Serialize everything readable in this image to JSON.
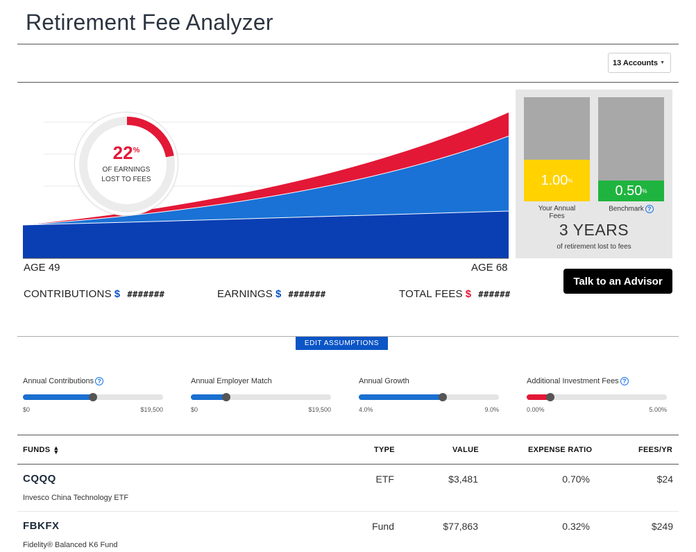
{
  "app_title": "Retirement Fee Analyzer",
  "accounts_select": {
    "label": "13 Accounts"
  },
  "chart": {
    "donut": {
      "percent": 22,
      "percent_text": "22",
      "percent_sign": "%",
      "label_line1": "OF EARNINGS",
      "label_line2": "LOST TO FEES"
    },
    "age_start": "AGE 49",
    "age_end": "AGE 68",
    "colors": {
      "contributions": "#0a3fb4",
      "earnings": "#1a72d6",
      "fees": "#e31837"
    }
  },
  "summary": {
    "contributions": {
      "label": "CONTRIBUTIONS",
      "currency": "$",
      "value": "#######"
    },
    "earnings": {
      "label": "EARNINGS",
      "currency": "$",
      "value": "#######"
    },
    "total_fees": {
      "label": "TOTAL FEES",
      "currency": "$",
      "value": "######"
    }
  },
  "fee_compare": {
    "yours": {
      "value": "1.00",
      "sign": "%",
      "caption": "Your Annual Fees",
      "level": 0.4,
      "color": "#ffd200"
    },
    "benchmark": {
      "value": "0.50",
      "sign": "%",
      "caption": "Benchmark",
      "level": 0.2,
      "color": "#1fb43f"
    },
    "years": "3 YEARS",
    "years_sub": "of retirement lost to fees"
  },
  "advisor_button": "Talk to an Advisor",
  "edit_button": "EDIT ASSUMPTIONS",
  "sliders": [
    {
      "label": "Annual Contributions",
      "help": true,
      "min": "$0",
      "max": "$19,500",
      "level": 0.5,
      "color": "#1a6fd0"
    },
    {
      "label": "Annual Employer Match",
      "help": false,
      "min": "$0",
      "max": "$19,500",
      "level": 0.25,
      "color": "#1a6fd0"
    },
    {
      "label": "Annual Growth",
      "help": false,
      "min": "4.0%",
      "max": "9.0%",
      "level": 0.6,
      "color": "#1a6fd0"
    },
    {
      "label": "Additional Investment Fees",
      "help": true,
      "min": "0.00%",
      "max": "5.00%",
      "level": 0.17,
      "color": "#e31837"
    }
  ],
  "funds_table": {
    "headers": {
      "funds": "FUNDS",
      "type": "TYPE",
      "value": "VALUE",
      "expense_ratio": "EXPENSE RATIO",
      "fees_yr": "FEES/YR"
    },
    "rows": [
      {
        "symbol": "CQQQ",
        "name": "Invesco China Technology ETF",
        "type": "ETF",
        "value": "$3,481",
        "expense_ratio": "0.70%",
        "fees_yr": "$24"
      },
      {
        "symbol": "FBKFX",
        "name": "Fidelity® Balanced K6 Fund",
        "type": "Fund",
        "value": "$77,863",
        "expense_ratio": "0.32%",
        "fees_yr": "$249"
      }
    ]
  }
}
